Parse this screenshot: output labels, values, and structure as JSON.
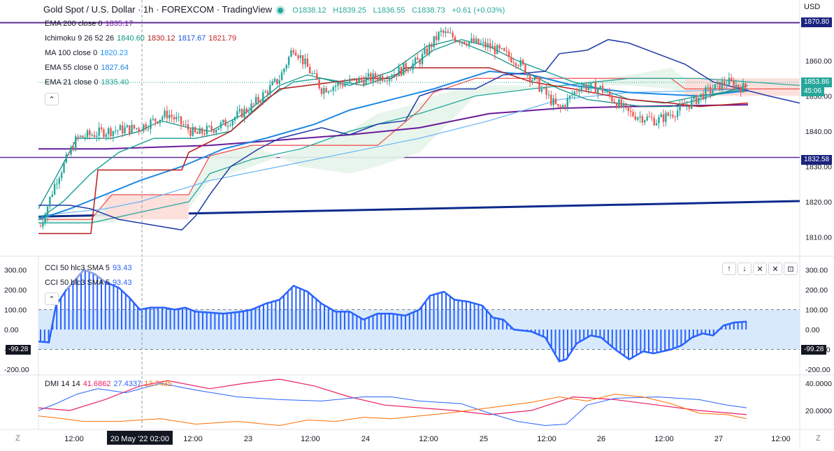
{
  "header": {
    "title": "Gold Spot / U.S. Dollar · 1h · FOREXCOM · TradingView",
    "open": "O1838.12",
    "high": "H1839.25",
    "low": "L1836.55",
    "close": "C1838.73",
    "change": "+0.61 (+0.03%)"
  },
  "currency": "USD",
  "legend_main": [
    {
      "name": "EMA 200 close 0",
      "values": [
        "1835.17"
      ],
      "colors": [
        "#7b1fa2"
      ]
    },
    {
      "name": "Ichimoku 9 26 52 26",
      "values": [
        "1840.60",
        "1830.12",
        "1817.67",
        "1821.79"
      ],
      "colors": [
        "#089981",
        "#b71c1c",
        "#1e53e5",
        "#ef5350"
      ]
    },
    {
      "name": "MA 100 close 0",
      "values": [
        "1820.23"
      ],
      "colors": [
        "#2196f3"
      ]
    },
    {
      "name": "EMA 55 close 0",
      "values": [
        "1827.64"
      ],
      "colors": [
        "#1e88e5"
      ]
    },
    {
      "name": "EMA 21 close 0",
      "values": [
        "1835.40"
      ],
      "colors": [
        "#26a69a"
      ]
    }
  ],
  "legend_cci": [
    {
      "name": "CCI 50 hlc3 SMA 5",
      "value": "93.43"
    },
    {
      "name": "CCI 50 hlc3 SMA 5",
      "value": "93.43"
    }
  ],
  "legend_dmi": {
    "name": "DMI 14 14",
    "values": [
      "41.6862",
      "27.4337",
      "13.7435"
    ],
    "colors": [
      "#e91e63",
      "#2962ff",
      "#ff6d00"
    ]
  },
  "price_axis": [
    "1860.00",
    "1850.00",
    "1840.00",
    "1830.00",
    "1820.00",
    "1810.00"
  ],
  "price_labels": {
    "top": "1870.80",
    "mid": "1832.58",
    "current": "1853.86",
    "countdown": "45:06"
  },
  "cci_axis": [
    "300.00",
    "200.00",
    "100.00",
    "0.00",
    "-100.00",
    "-200.00"
  ],
  "cci_label": "-99.28",
  "dmi_axis": [
    "40.0000",
    "20.0000"
  ],
  "time_axis": [
    "12:00",
    "20 May '22",
    "02:00",
    "12:00",
    "23",
    "12:00",
    "24",
    "12:00",
    "25",
    "12:00",
    "26",
    "12:00",
    "27",
    "12:00"
  ],
  "footer": {
    "left": "Z",
    "right": "Z"
  },
  "pane_buttons": [
    "↑",
    "↓",
    "✕",
    "✕",
    "⊡"
  ],
  "colors": {
    "up": "#26a69a",
    "down": "#ef5350",
    "cci": "#2962ff",
    "kumo_green": "#e8f5e9",
    "kumo_red": "#fde0dc"
  },
  "chart_data": {
    "type": "line",
    "series": [
      {
        "name": "EMA 200 close 0",
        "values": [
          1835.17
        ]
      },
      {
        "name": "MA 100 close 0",
        "values": [
          1820.23
        ]
      },
      {
        "name": "EMA 55 close 0",
        "values": [
          1827.64
        ]
      },
      {
        "name": "EMA 21 close 0",
        "values": [
          1835.4
        ]
      }
    ]
  }
}
